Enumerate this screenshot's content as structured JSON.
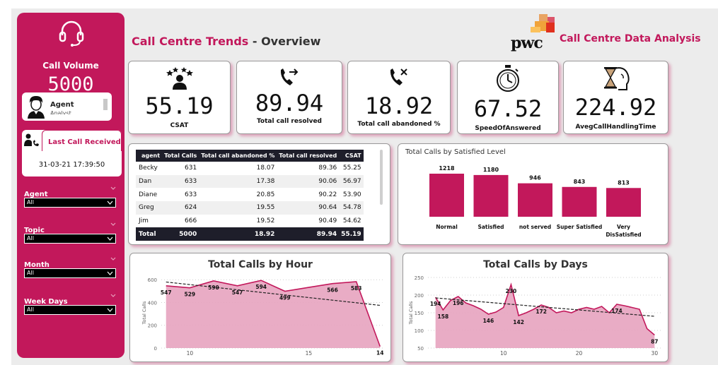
{
  "sidebar": {
    "call_volume_label": "Call Volume",
    "call_volume_value": "5000",
    "agent_card": {
      "label": "Agent",
      "sub": "Analyst"
    },
    "last_call": {
      "title": "Last Call Received",
      "value": "31-03-21 17:39:50"
    },
    "filters": [
      {
        "label": "Agent",
        "value": "All"
      },
      {
        "label": "Topic",
        "value": "All"
      },
      {
        "label": "Month",
        "value": "All"
      },
      {
        "label": "Week Days",
        "value": "All"
      }
    ]
  },
  "header": {
    "title_main": "Call Centre Trends",
    "title_sep": " - ",
    "title_sub": "Overview",
    "logo_text": "pwc",
    "brand_title": "Call Centre Data Analysis"
  },
  "kpis": [
    {
      "icon": "star-rating-icon",
      "value": "55.19",
      "label": "CSAT"
    },
    {
      "icon": "phone-outgoing-icon",
      "value": "89.94",
      "label": "Total call resolved"
    },
    {
      "icon": "phone-missed-icon",
      "value": "18.92",
      "label": "Total call abandoned %"
    },
    {
      "icon": "stopwatch-icon",
      "value": "67.52",
      "label": "SpeedOfAnswered"
    },
    {
      "icon": "hourglass-head-icon",
      "value": "224.92",
      "label": "AvegCallHandlingTime"
    }
  ],
  "table": {
    "headers": [
      "agent",
      "Total Calls",
      "Total call abandoned %",
      "Total call resolved",
      "CSAT"
    ],
    "rows": [
      [
        "Becky",
        "631",
        "18.07",
        "89.36",
        "55.25"
      ],
      [
        "Dan",
        "633",
        "17.38",
        "90.06",
        "56.97"
      ],
      [
        "Diane",
        "633",
        "20.85",
        "90.22",
        "53.90"
      ],
      [
        "Greg",
        "624",
        "19.55",
        "90.64",
        "54.78"
      ],
      [
        "Jim",
        "666",
        "19.52",
        "90.49",
        "54.62"
      ]
    ],
    "total": [
      "Total",
      "5000",
      "18.92",
      "89.94",
      "55.19"
    ]
  },
  "chart_data": [
    {
      "type": "bar",
      "title": "Total Calls by Satisfied Level",
      "categories": [
        "Normal",
        "Satisfied",
        "not served",
        "Super Satisfied",
        "Very DisSatisfied"
      ],
      "values": [
        1218,
        1180,
        946,
        843,
        813
      ],
      "value_labels": [
        "1218",
        "1180",
        "946",
        "843",
        "813"
      ],
      "category_lines": [
        [
          "Normal"
        ],
        [
          "Satisfied"
        ],
        [
          "not served"
        ],
        [
          "Super Satisfied"
        ],
        [
          "Very",
          "DisSatisfied"
        ]
      ],
      "ylim": [
        0,
        1300
      ],
      "color": "#c2185b",
      "grid": false
    },
    {
      "type": "area",
      "title": "Total Calls by Hour",
      "ylabel": "Total Calls",
      "x": [
        9,
        10,
        11,
        12,
        13,
        14,
        15,
        16,
        17,
        18
      ],
      "values": [
        547,
        529,
        590,
        547,
        594,
        499,
        533,
        566,
        583,
        14
      ],
      "labeled_points": [
        {
          "x": 9,
          "text": "547"
        },
        {
          "x": 10,
          "text": "529"
        },
        {
          "x": 11,
          "text": "590"
        },
        {
          "x": 12,
          "text": "547"
        },
        {
          "x": 13,
          "text": "594"
        },
        {
          "x": 14,
          "text": "499"
        },
        {
          "x": 16,
          "text": "566"
        },
        {
          "x": 17,
          "text": "583"
        },
        {
          "x": 18,
          "text": "14"
        }
      ],
      "xlim": [
        8.8,
        18.2
      ],
      "xticks": [
        "10",
        "15"
      ],
      "xtick_values": [
        10,
        15
      ],
      "ylim": [
        0,
        620
      ],
      "yticks": [
        "0",
        "200",
        "400",
        "600"
      ],
      "ytick_values": [
        0,
        200,
        400,
        600
      ],
      "trendline": [
        [
          9,
          580
        ],
        [
          18,
          375
        ]
      ],
      "color": "#c2185b"
    },
    {
      "type": "area",
      "title": "Total Calls by Days",
      "ylabel": "Total Calls",
      "x": [
        1,
        2,
        3,
        4,
        5,
        6,
        7,
        8,
        9,
        10,
        11,
        12,
        13,
        14,
        15,
        16,
        17,
        18,
        19,
        20,
        21,
        22,
        23,
        24,
        25,
        26,
        27,
        28,
        29,
        30
      ],
      "values": [
        194,
        158,
        185,
        196,
        178,
        170,
        160,
        146,
        152,
        165,
        230,
        142,
        150,
        160,
        172,
        165,
        150,
        155,
        150,
        160,
        165,
        160,
        168,
        150,
        174,
        170,
        165,
        160,
        105,
        87
      ],
      "labeled_points": [
        {
          "x": 1,
          "text": "194"
        },
        {
          "x": 2,
          "text": "158"
        },
        {
          "x": 4,
          "text": "196"
        },
        {
          "x": 8,
          "text": "146"
        },
        {
          "x": 11,
          "text": "230"
        },
        {
          "x": 12,
          "text": "142"
        },
        {
          "x": 15,
          "text": "172"
        },
        {
          "x": 25,
          "text": "174"
        },
        {
          "x": 30,
          "text": "87"
        }
      ],
      "xlim": [
        0,
        31
      ],
      "xticks": [
        "10",
        "20",
        "30"
      ],
      "xtick_values": [
        10,
        20,
        30
      ],
      "ylim": [
        50,
        250
      ],
      "yticks": [
        "50",
        "100",
        "150",
        "200",
        "250"
      ],
      "ytick_values": [
        50,
        100,
        150,
        200,
        250
      ],
      "trendline": [
        [
          1,
          192
        ],
        [
          30,
          140
        ]
      ],
      "color": "#c2185b"
    }
  ]
}
